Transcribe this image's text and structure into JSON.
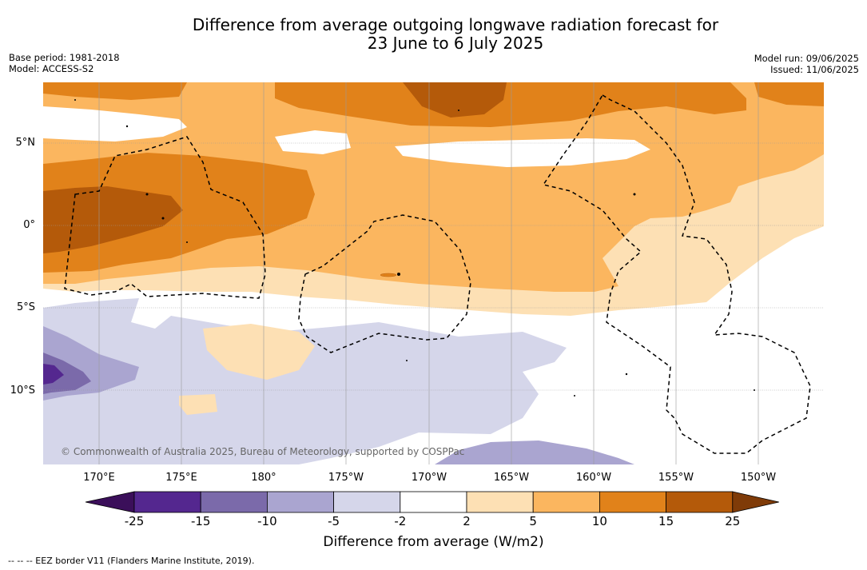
{
  "title_line1": "Difference from average outgoing longwave radiation forecast for",
  "title_line2": "23 June to 6 July 2025",
  "meta_left": {
    "base_period": "Base period: 1981-2018",
    "model": "Model: ACCESS-S2"
  },
  "meta_right": {
    "model_run": "Model run: 09/06/2025",
    "issued": "Issued: 11/06/2025"
  },
  "lat_labels": [
    "5°N",
    "0°",
    "5°S",
    "10°S"
  ],
  "lon_labels": [
    "170°E",
    "175°E",
    "180°",
    "175°W",
    "170°W",
    "165°W",
    "160°W",
    "155°W",
    "150°W"
  ],
  "colorbar": {
    "ticks": [
      "-25",
      "-15",
      "-10",
      "-5",
      "-2",
      "2",
      "5",
      "10",
      "15",
      "25"
    ],
    "colors": [
      "#3b0f5a",
      "#54278f",
      "#7b6aaa",
      "#aaa5d0",
      "#d5d6ea",
      "#ffffff",
      "#fde0b4",
      "#fbb65f",
      "#e1821a",
      "#b45a0a",
      "#7f3b08"
    ],
    "label": "Difference from average (W/m2)"
  },
  "copyright": "© Commonwealth of Australia 2025, Bureau of Meteorology, supported by COSPPac",
  "footnote": "--  --  -- EEZ border V11 (Flanders Marine Institute, 2019)."
}
